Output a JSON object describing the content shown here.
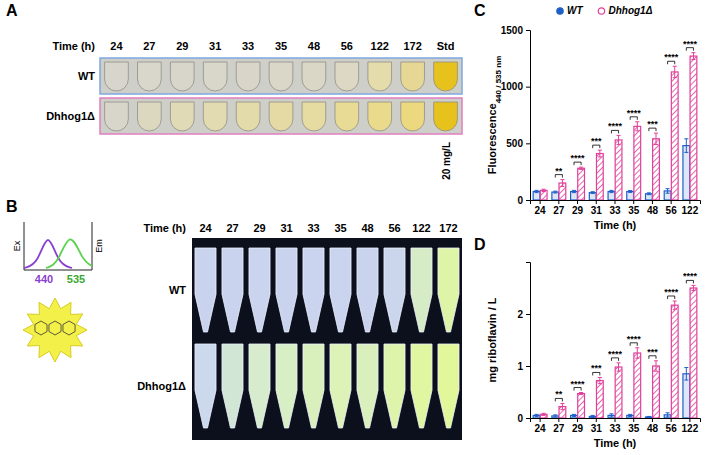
{
  "panels": {
    "A": {
      "letter": "A",
      "time_label": "Time (h)",
      "times": [
        "24",
        "27",
        "29",
        "31",
        "33",
        "35",
        "48",
        "56",
        "122",
        "172",
        "Std"
      ],
      "rows": [
        {
          "label": "WT",
          "colors": [
            "#d8d6cc",
            "#d9d6cb",
            "#d8d5ca",
            "#d9d6ca",
            "#d9d6c9",
            "#dad6c8",
            "#dbd7c6",
            "#dcd8c4",
            "#e4dcaa",
            "#e6d894",
            "#e8c21c"
          ]
        },
        {
          "label": "Dhhog1Δ",
          "colors": [
            "#d8d6ca",
            "#dcd8c0",
            "#e0dab6",
            "#e2dab0",
            "#e4dbaa",
            "#e5daa4",
            "#e6dba0",
            "#e8db96",
            "#eadb8c",
            "#ecd87e",
            "#e8c21c"
          ]
        }
      ],
      "standard_label": "20 mg/L"
    },
    "B": {
      "letter": "B",
      "excitation_label": "Ex",
      "emission_label": "Em",
      "excitation_nm": "440",
      "emission_nm": "535",
      "time_label": "Time (h)",
      "times": [
        "24",
        "27",
        "29",
        "31",
        "33",
        "35",
        "48",
        "56",
        "122",
        "172"
      ],
      "rows": [
        {
          "label": "WT",
          "colors": [
            "#c9d3ee",
            "#c9d3ee",
            "#cad4ee",
            "#c9d3ee",
            "#cad4ee",
            "#cad4ee",
            "#c9d3ee",
            "#cbd6ec",
            "#d6ecc6",
            "#def4a6"
          ]
        },
        {
          "label": "Dhhog1Δ",
          "colors": [
            "#ccd8ec",
            "#d2e6d6",
            "#d6eccc",
            "#d8eec4",
            "#daf0bc",
            "#dcf2b6",
            "#daf0bc",
            "#def4aa",
            "#e0f6a0",
            "#e2f69a"
          ]
        }
      ]
    }
  },
  "chart_data": [
    {
      "type": "bar",
      "letter": "C",
      "y_label": "Fluorescence",
      "y_label_subscript": "440 / 535 nm",
      "x_label": "Time (h)",
      "categories": [
        "24",
        "27",
        "29",
        "31",
        "33",
        "35",
        "48",
        "56",
        "122"
      ],
      "series": [
        {
          "name": "WT",
          "color": "#1f5fc8",
          "values": [
            75,
            70,
            75,
            65,
            75,
            75,
            55,
            80,
            480
          ],
          "errors": [
            10,
            8,
            10,
            8,
            10,
            8,
            8,
            20,
            60
          ]
        },
        {
          "name": "Dhhog1Δ",
          "color": "#e0409a",
          "values": [
            85,
            150,
            280,
            410,
            530,
            650,
            540,
            1130,
            1270
          ],
          "errors": [
            10,
            30,
            10,
            30,
            40,
            40,
            50,
            50,
            30
          ]
        }
      ],
      "significance": [
        null,
        "**",
        "****",
        "***",
        "****",
        "****",
        "***",
        "****",
        "****"
      ],
      "ylim": [
        0,
        1500
      ],
      "yticks": [
        0,
        500,
        1000,
        1500
      ],
      "legend": "top"
    },
    {
      "type": "bar",
      "letter": "D",
      "y_label": "mg riboflavin / L",
      "x_label": "Time (h)",
      "categories": [
        "24",
        "27",
        "29",
        "31",
        "33",
        "35",
        "48",
        "56",
        "122"
      ],
      "series": [
        {
          "name": "WT",
          "color": "#1f5fc8",
          "values": [
            0.05,
            0.04,
            0.05,
            0.03,
            0.05,
            0.05,
            0.02,
            0.06,
            0.85
          ],
          "errors": [
            0.02,
            0.02,
            0.02,
            0.02,
            0.03,
            0.02,
            0.01,
            0.04,
            0.12
          ]
        },
        {
          "name": "Dhhog1Δ",
          "color": "#e0409a",
          "values": [
            0.07,
            0.22,
            0.47,
            0.72,
            0.98,
            1.25,
            1.0,
            2.17,
            2.5
          ],
          "errors": [
            0.02,
            0.06,
            0.02,
            0.06,
            0.08,
            0.1,
            0.1,
            0.08,
            0.05
          ]
        }
      ],
      "significance": [
        null,
        "**",
        "****",
        "***",
        "****",
        "****",
        "***",
        "****",
        "****"
      ],
      "ylim": [
        0,
        3
      ],
      "yticks": [
        0,
        1,
        2
      ]
    }
  ]
}
